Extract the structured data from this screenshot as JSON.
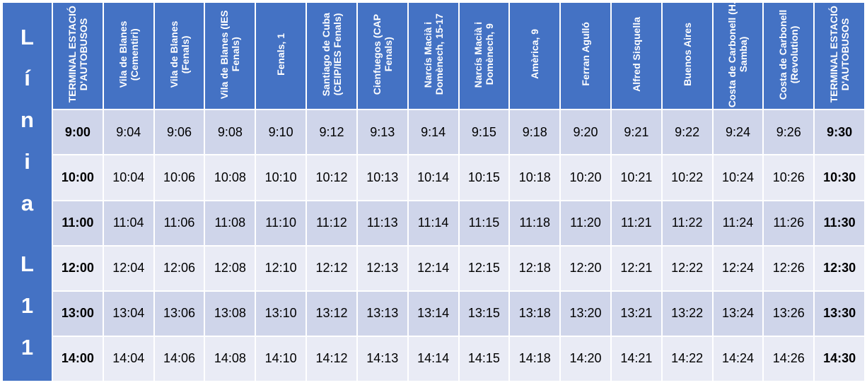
{
  "line_label_chars": [
    "L",
    "í",
    "n",
    "i",
    "a",
    "",
    "L",
    "1",
    "1"
  ],
  "headers": [
    "TERMINAL ESTACIÓ D'AUTOBUSOS",
    "Vila de Blanes (Cementiri)",
    "Vila de Blanes (Fenals)",
    "Vila de Blanes (IES Fenals)",
    "Fenals, 1",
    "Santiago de Cuba (CEIP/IES Fenals)",
    "Cienfuegos (CAP Fenals)",
    "Narcís Macià i Domènech, 15-17",
    "Narcís Macià i Domènech, 9",
    "Amèrica, 9",
    "Ferran Agulló",
    "Alfred Sisquella",
    "Buenos Aires",
    "Costa de Carbonell (H. Samba)",
    "Costa de Carbonell (Revolution)",
    "TERMINAL ESTACIÓ D'AUTOBUSOS"
  ],
  "rows": [
    [
      "9:00",
      "9:04",
      "9:06",
      "9:08",
      "9:10",
      "9:12",
      "9:13",
      "9:14",
      "9:15",
      "9:18",
      "9:20",
      "9:21",
      "9:22",
      "9:24",
      "9:26",
      "9:30"
    ],
    [
      "10:00",
      "10:04",
      "10:06",
      "10:08",
      "10:10",
      "10:12",
      "10:13",
      "10:14",
      "10:15",
      "10:18",
      "10:20",
      "10:21",
      "10:22",
      "10:24",
      "10:26",
      "10:30"
    ],
    [
      "11:00",
      "11:04",
      "11:06",
      "11:08",
      "11:10",
      "11:12",
      "11:13",
      "11:14",
      "11:15",
      "11:18",
      "11:20",
      "11:21",
      "11:22",
      "11:24",
      "11:26",
      "11:30"
    ],
    [
      "12:00",
      "12:04",
      "12:06",
      "12:08",
      "12:10",
      "12:12",
      "12:13",
      "12:14",
      "12:15",
      "12:18",
      "12:20",
      "12:21",
      "12:22",
      "12:24",
      "12:26",
      "12:30"
    ],
    [
      "13:00",
      "13:04",
      "13:06",
      "13:08",
      "13:10",
      "13:12",
      "13:13",
      "13:14",
      "13:15",
      "13:18",
      "13:20",
      "13:21",
      "13:22",
      "13:24",
      "13:26",
      "13:30"
    ],
    [
      "14:00",
      "14:04",
      "14:06",
      "14:08",
      "14:10",
      "14:12",
      "14:13",
      "14:14",
      "14:15",
      "14:18",
      "14:20",
      "14:21",
      "14:22",
      "14:24",
      "14:26",
      "14:30"
    ]
  ],
  "colors": {
    "header_bg": "#4472c4",
    "row_dark": "#cfd5ea",
    "row_light": "#e9ebf5",
    "border": "#ffffff"
  }
}
